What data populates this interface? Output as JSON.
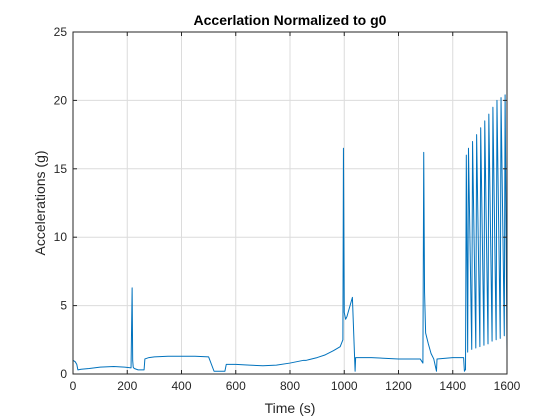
{
  "chart_data": {
    "type": "line",
    "title": "Accerlation Normalized to g0",
    "xlabel": "Time (s)",
    "ylabel": "Accelerations (g)",
    "xlim": [
      0,
      1600
    ],
    "ylim": [
      0,
      25
    ],
    "xticks": [
      0,
      200,
      400,
      600,
      800,
      1000,
      1200,
      1400,
      1600
    ],
    "yticks": [
      0,
      5,
      10,
      15,
      20,
      25
    ],
    "xtick_labels": [
      "0",
      "200",
      "400",
      "600",
      "800",
      "1000",
      "1200",
      "1400",
      "1600"
    ],
    "ytick_labels": [
      "0",
      "5",
      "10",
      "15",
      "20",
      "25"
    ],
    "grid": true,
    "series": [
      {
        "color": "#0072BD",
        "x": [
          0,
          8,
          14,
          18,
          30,
          60,
          100,
          150,
          190,
          214,
          218,
          220,
          222,
          226,
          240,
          262,
          265,
          280,
          300,
          350,
          400,
          450,
          500,
          520,
          525,
          560,
          565,
          600,
          650,
          700,
          750,
          800,
          850,
          860,
          870,
          900,
          930,
          960,
          985,
          995,
          997,
          1000,
          1005,
          1010,
          1030,
          1040,
          1042,
          1100,
          1200,
          1280,
          1290,
          1293,
          1296,
          1300,
          1310,
          1320,
          1330,
          1340,
          1342,
          1400,
          1440,
          1443,
          1445,
          1447,
          1450,
          1455,
          1458,
          1470,
          1473,
          1485,
          1488,
          1500,
          1503,
          1515,
          1518,
          1530,
          1533,
          1545,
          1548,
          1560,
          1563,
          1575,
          1578,
          1590,
          1593,
          1600
        ],
        "y": [
          1.0,
          0.9,
          0.7,
          0.3,
          0.35,
          0.4,
          0.5,
          0.55,
          0.5,
          0.45,
          6.3,
          1.0,
          0.5,
          0.4,
          0.3,
          0.3,
          1.1,
          1.2,
          1.25,
          1.3,
          1.3,
          1.3,
          1.25,
          0.2,
          0.2,
          0.2,
          0.7,
          0.7,
          0.65,
          0.6,
          0.65,
          0.8,
          1.0,
          1.0,
          1.05,
          1.2,
          1.4,
          1.7,
          2.0,
          2.5,
          16.5,
          4.5,
          4.0,
          4.2,
          5.6,
          0.2,
          1.2,
          1.2,
          1.1,
          1.1,
          0.8,
          16.2,
          6.0,
          3.0,
          2.2,
          1.5,
          1.1,
          0.2,
          1.1,
          1.2,
          1.2,
          0.2,
          0.3,
          0.3,
          16.0,
          1.6,
          16.5,
          1.8,
          17.0,
          1.9,
          17.5,
          2.0,
          18.0,
          2.1,
          18.5,
          2.2,
          19.0,
          2.4,
          19.5,
          2.5,
          20.0,
          2.6,
          20.2,
          2.8,
          20.4,
          1.6
        ]
      }
    ]
  }
}
